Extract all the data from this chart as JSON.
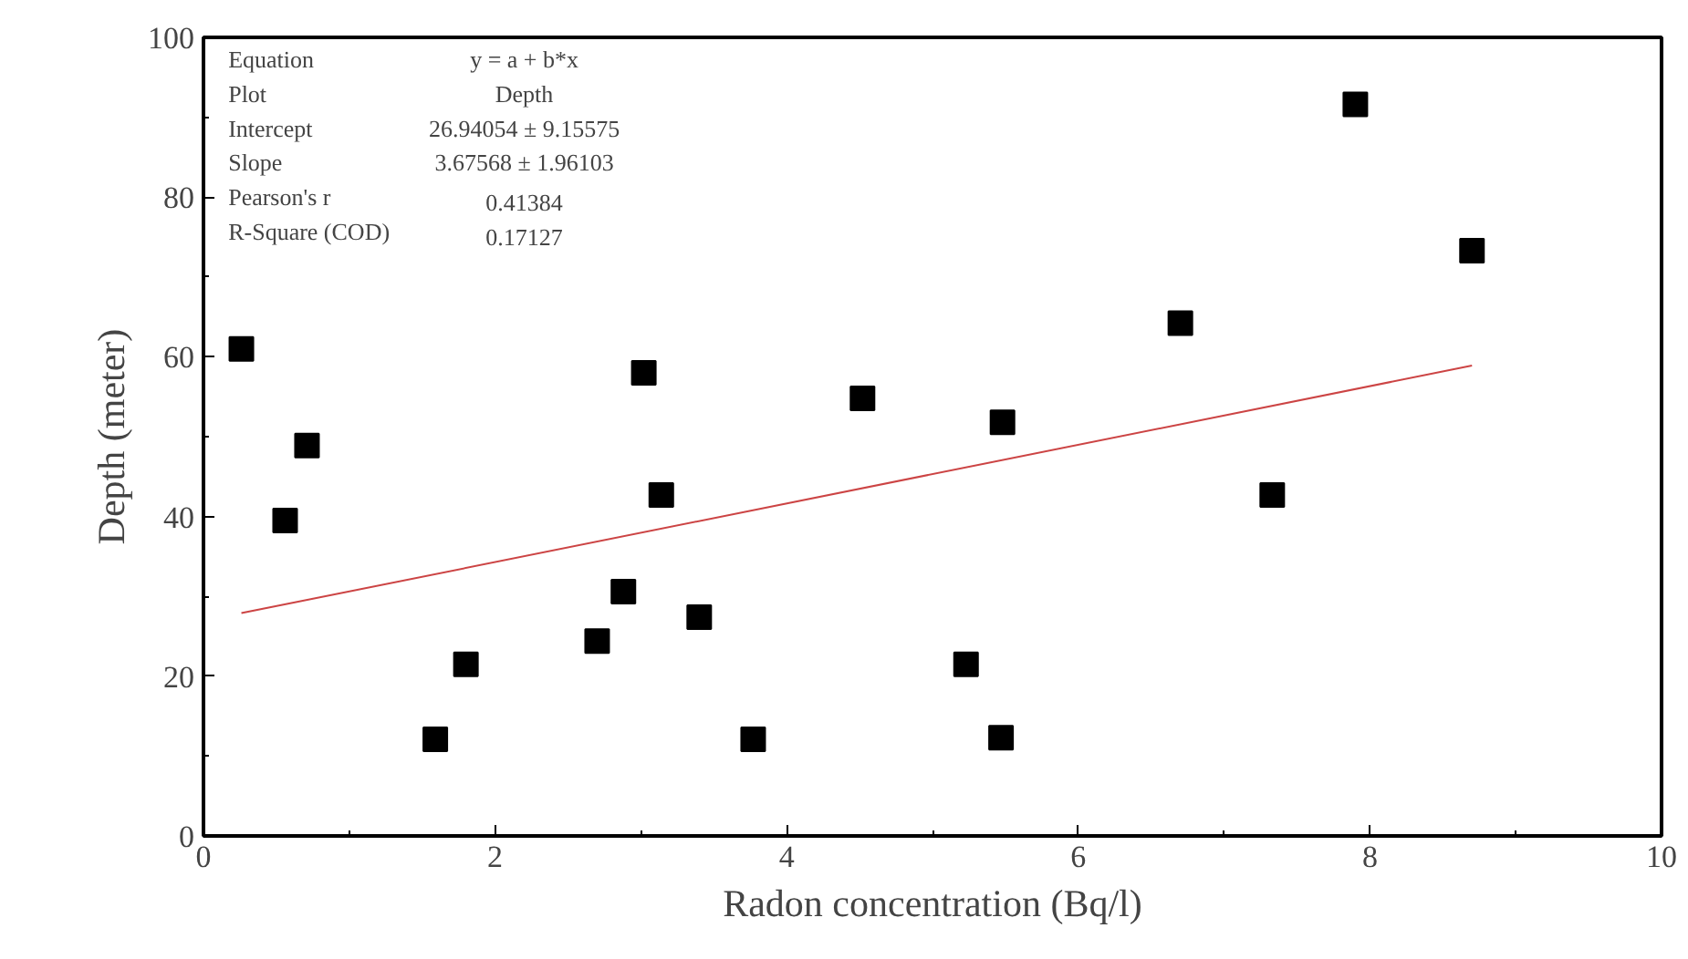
{
  "chart_data": {
    "type": "scatter",
    "xlabel": "Radon concentration (Bq/l)",
    "ylabel": "Depth (meter)",
    "xlim": [
      0,
      10
    ],
    "xticks": [
      0,
      2,
      4,
      6,
      8,
      10
    ],
    "ylim": [
      0,
      100
    ],
    "yticks": [
      0,
      20,
      40,
      60,
      80,
      100
    ],
    "grid": false,
    "marker": "square",
    "series": [
      {
        "color": "#000000",
        "x": [
          0.26,
          0.56,
          0.71,
          1.59,
          1.8,
          2.7,
          2.88,
          3.02,
          3.14,
          3.4,
          3.77,
          4.52,
          5.23,
          5.47,
          5.48,
          6.7,
          7.33,
          7.9,
          8.7
        ],
        "values": [
          61,
          39.5,
          48.9,
          12.1,
          21.5,
          24.4,
          30.6,
          58,
          42.7,
          27.4,
          12.1,
          54.8,
          21.5,
          12.3,
          51.8,
          64.2,
          42.7,
          91.6,
          73.3
        ]
      },
      {
        "type": "line",
        "color": "#cc4444",
        "line_style": "solid",
        "marker": "none",
        "x": [
          0.26,
          8.7
        ],
        "values": [
          27.9,
          58.9
        ]
      }
    ],
    "annotations": [
      "Equation",
      "y = a + b*x",
      "Plot",
      "Depth",
      "Intercept",
      "26.94054 ± 9.15575",
      "Slope",
      "3.67568 ± 1.96103",
      "Pearson's r",
      "0.41384",
      "R-Square (COD)",
      "0.17127"
    ]
  }
}
